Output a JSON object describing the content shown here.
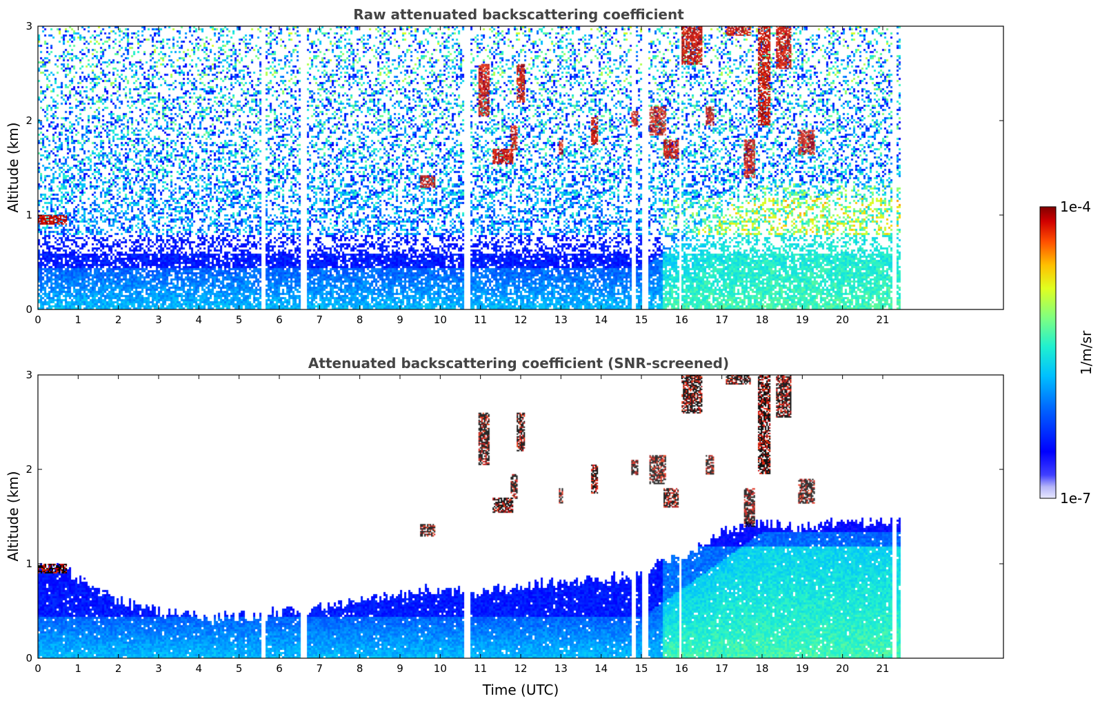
{
  "chart_data": [
    {
      "type": "heatmap",
      "title": "Raw attenuated backscattering coefficient",
      "xlabel": "",
      "ylabel": "Altitude (km)",
      "xlim": [
        0,
        24
      ],
      "ylim": [
        0,
        3
      ],
      "x_ticks": [
        "0",
        "1",
        "2",
        "3",
        "4",
        "5",
        "6",
        "7",
        "8",
        "9",
        "10",
        "11",
        "12",
        "13",
        "14",
        "15",
        "16",
        "17",
        "18",
        "19",
        "20",
        "21"
      ],
      "y_ticks": [
        "0",
        "1",
        "2",
        "3"
      ],
      "data_extent_x": [
        0,
        21.4
      ],
      "data_gaps_x": [
        5.55,
        5.65,
        6.5,
        6.65,
        10.55,
        10.7,
        14.75,
        14.85,
        15.0,
        15.15,
        15.9,
        15.97,
        21.2,
        21.3
      ],
      "features": [
        {
          "x": [
            0,
            0.7
          ],
          "y": [
            0.9,
            1.0
          ],
          "level": "high"
        },
        {
          "x": [
            9.5,
            9.85
          ],
          "y": [
            1.3,
            1.42
          ],
          "level": "high"
        },
        {
          "x": [
            11.3,
            11.8
          ],
          "y": [
            1.55,
            1.7
          ],
          "level": "high"
        },
        {
          "x": [
            11.75,
            11.9
          ],
          "y": [
            1.7,
            1.95
          ],
          "level": "high"
        },
        {
          "x": [
            11.9,
            12.1
          ],
          "y": [
            2.2,
            2.6
          ],
          "level": "high"
        },
        {
          "x": [
            10.95,
            11.2
          ],
          "y": [
            2.05,
            2.6
          ],
          "level": "high"
        },
        {
          "x": [
            12.95,
            13.05
          ],
          "y": [
            1.65,
            1.8
          ],
          "level": "high"
        },
        {
          "x": [
            13.75,
            13.9
          ],
          "y": [
            1.75,
            2.05
          ],
          "level": "high"
        },
        {
          "x": [
            14.75,
            14.9
          ],
          "y": [
            1.95,
            2.1
          ],
          "level": "high"
        },
        {
          "x": [
            15.2,
            15.6
          ],
          "y": [
            1.85,
            2.15
          ],
          "level": "high"
        },
        {
          "x": [
            15.55,
            15.9
          ],
          "y": [
            1.6,
            1.8
          ],
          "level": "high"
        },
        {
          "x": [
            16.0,
            16.5
          ],
          "y": [
            2.6,
            3.0
          ],
          "level": "high"
        },
        {
          "x": [
            16.6,
            16.8
          ],
          "y": [
            1.95,
            2.15
          ],
          "level": "high"
        },
        {
          "x": [
            17.1,
            17.7
          ],
          "y": [
            2.9,
            3.0
          ],
          "level": "high"
        },
        {
          "x": [
            17.55,
            17.8
          ],
          "y": [
            1.4,
            1.8
          ],
          "level": "high"
        },
        {
          "x": [
            17.9,
            18.2
          ],
          "y": [
            1.95,
            3.0
          ],
          "level": "high"
        },
        {
          "x": [
            18.35,
            18.7
          ],
          "y": [
            2.55,
            3.0
          ],
          "level": "high"
        },
        {
          "x": [
            18.9,
            19.3
          ],
          "y": [
            1.65,
            1.9
          ],
          "level": "high"
        }
      ]
    },
    {
      "type": "heatmap",
      "title": "Attenuated backscattering coefficient (SNR-screened)",
      "xlabel": "Time (UTC)",
      "ylabel": "Altitude (km)",
      "xlim": [
        0,
        24
      ],
      "ylim": [
        0,
        3
      ],
      "x_ticks": [
        "0",
        "1",
        "2",
        "3",
        "4",
        "5",
        "6",
        "7",
        "8",
        "9",
        "10",
        "11",
        "12",
        "13",
        "14",
        "15",
        "16",
        "17",
        "18",
        "19",
        "20",
        "21"
      ],
      "y_ticks": [
        "0",
        "1",
        "2",
        "3"
      ],
      "data_extent_x": [
        0,
        21.4
      ],
      "valid_top_km": [
        [
          0,
          1.0
        ],
        [
          0.6,
          0.95
        ],
        [
          1.0,
          0.85
        ],
        [
          1.5,
          0.72
        ],
        [
          2.0,
          0.62
        ],
        [
          3.0,
          0.5
        ],
        [
          4.0,
          0.45
        ],
        [
          5.0,
          0.45
        ],
        [
          6.0,
          0.5
        ],
        [
          7.0,
          0.55
        ],
        [
          8.0,
          0.62
        ],
        [
          9.0,
          0.7
        ],
        [
          10.0,
          0.75
        ],
        [
          11.0,
          0.7
        ],
        [
          12.0,
          0.78
        ],
        [
          13.0,
          0.82
        ],
        [
          14.0,
          0.85
        ],
        [
          15.0,
          0.9
        ],
        [
          15.5,
          1.05
        ],
        [
          16.0,
          1.1
        ],
        [
          17.0,
          1.35
        ],
        [
          18.0,
          1.45
        ],
        [
          19.0,
          1.4
        ],
        [
          20.0,
          1.45
        ],
        [
          21.4,
          1.45
        ]
      ]
    }
  ],
  "colorbar": {
    "label": "1/m/sr",
    "max_label": "1e-4",
    "min_label": "1e-7",
    "scale": "log",
    "colormap": "jet",
    "min": 1e-07,
    "max": 0.0001
  }
}
